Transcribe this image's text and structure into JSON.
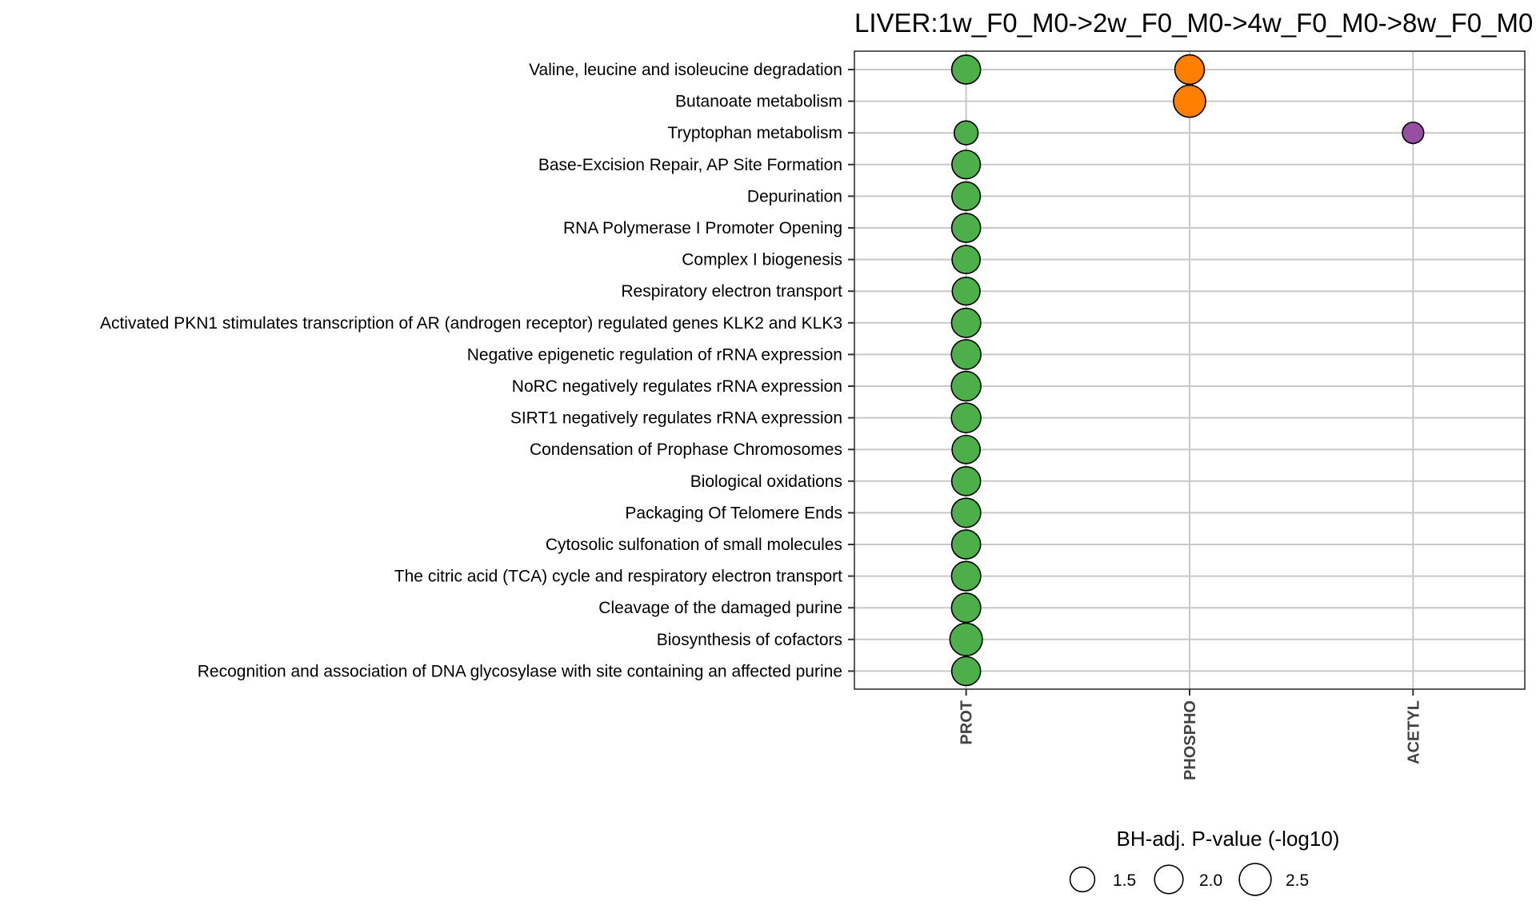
{
  "chart_data": {
    "type": "scatter",
    "title": "LIVER:1w_F0_M0->2w_F0_M0->4w_F0_M0->8w_F0_M0",
    "x_categories": [
      "PROT",
      "PHOSPHO",
      "ACETYL"
    ],
    "y_categories": [
      "Valine, leucine and isoleucine degradation",
      "Butanoate metabolism",
      "Tryptophan metabolism",
      "Base-Excision Repair, AP Site Formation",
      "Depurination",
      "RNA Polymerase I Promoter Opening",
      "Complex I biogenesis",
      "Respiratory electron transport",
      "Activated PKN1 stimulates transcription of AR (androgen receptor) regulated genes KLK2 and KLK3",
      "Negative epigenetic regulation of rRNA expression",
      "NoRC negatively regulates rRNA expression",
      "SIRT1 negatively regulates rRNA expression",
      "Condensation of Prophase Chromosomes",
      "Biological oxidations",
      "Packaging Of Telomere Ends",
      "Cytosolic sulfonation of small molecules",
      "The citric acid (TCA) cycle and respiratory electron transport",
      "Cleavage of the damaged purine",
      "Biosynthesis of cofactors",
      "Recognition and association of DNA glycosylase with site containing an affected purine"
    ],
    "points": [
      {
        "x": "PROT",
        "y": "Valine, leucine and isoleucine degradation",
        "size": 2.05,
        "color": "#4daf4a"
      },
      {
        "x": "PHOSPHO",
        "y": "Valine, leucine and isoleucine degradation",
        "size": 2.15,
        "color": "#ff7f00"
      },
      {
        "x": "PHOSPHO",
        "y": "Butanoate metabolism",
        "size": 2.55,
        "color": "#ff7f00"
      },
      {
        "x": "PROT",
        "y": "Tryptophan metabolism",
        "size": 1.4,
        "color": "#4daf4a"
      },
      {
        "x": "ACETYL",
        "y": "Tryptophan metabolism",
        "size": 1.12,
        "color": "#984ea3"
      },
      {
        "x": "PROT",
        "y": "Base-Excision Repair, AP Site Formation",
        "size": 2.0,
        "color": "#4daf4a"
      },
      {
        "x": "PROT",
        "y": "Depurination",
        "size": 2.0,
        "color": "#4daf4a"
      },
      {
        "x": "PROT",
        "y": "RNA Polymerase I Promoter Opening",
        "size": 2.05,
        "color": "#4daf4a"
      },
      {
        "x": "PROT",
        "y": "Complex I biogenesis",
        "size": 1.95,
        "color": "#4daf4a"
      },
      {
        "x": "PROT",
        "y": "Respiratory electron transport",
        "size": 1.9,
        "color": "#4daf4a"
      },
      {
        "x": "PROT",
        "y": "Activated PKN1 stimulates transcription of AR (androgen receptor) regulated genes KLK2 and KLK3",
        "size": 2.1,
        "color": "#4daf4a"
      },
      {
        "x": "PROT",
        "y": "Negative epigenetic regulation of rRNA expression",
        "size": 2.15,
        "color": "#4daf4a"
      },
      {
        "x": "PROT",
        "y": "NoRC negatively regulates rRNA expression",
        "size": 2.15,
        "color": "#4daf4a"
      },
      {
        "x": "PROT",
        "y": "SIRT1 negatively regulates rRNA expression",
        "size": 2.15,
        "color": "#4daf4a"
      },
      {
        "x": "PROT",
        "y": "Condensation of Prophase Chromosomes",
        "size": 1.95,
        "color": "#4daf4a"
      },
      {
        "x": "PROT",
        "y": "Biological oxidations",
        "size": 2.05,
        "color": "#4daf4a"
      },
      {
        "x": "PROT",
        "y": "Packaging Of Telomere Ends",
        "size": 2.1,
        "color": "#4daf4a"
      },
      {
        "x": "PROT",
        "y": "Cytosolic sulfonation of small molecules",
        "size": 2.05,
        "color": "#4daf4a"
      },
      {
        "x": "PROT",
        "y": "The citric acid (TCA) cycle and respiratory electron transport",
        "size": 2.1,
        "color": "#4daf4a"
      },
      {
        "x": "PROT",
        "y": "Cleavage of the damaged purine",
        "size": 2.1,
        "color": "#4daf4a"
      },
      {
        "x": "PROT",
        "y": "Biosynthesis of cofactors",
        "size": 2.6,
        "color": "#4daf4a"
      },
      {
        "x": "PROT",
        "y": "Recognition and association of DNA glycosylase with site containing an affected purine",
        "size": 2.05,
        "color": "#4daf4a"
      }
    ],
    "size_legend": {
      "title": "BH-adj. P-value (-log10)",
      "values": [
        1.5,
        2.0,
        2.5
      ],
      "labels": [
        "1.5",
        "2.0",
        "2.5"
      ],
      "placement": "bottom"
    },
    "colors": {
      "PROT": "#4daf4a",
      "PHOSPHO": "#ff7f00",
      "ACETYL": "#984ea3"
    },
    "grid": true
  }
}
